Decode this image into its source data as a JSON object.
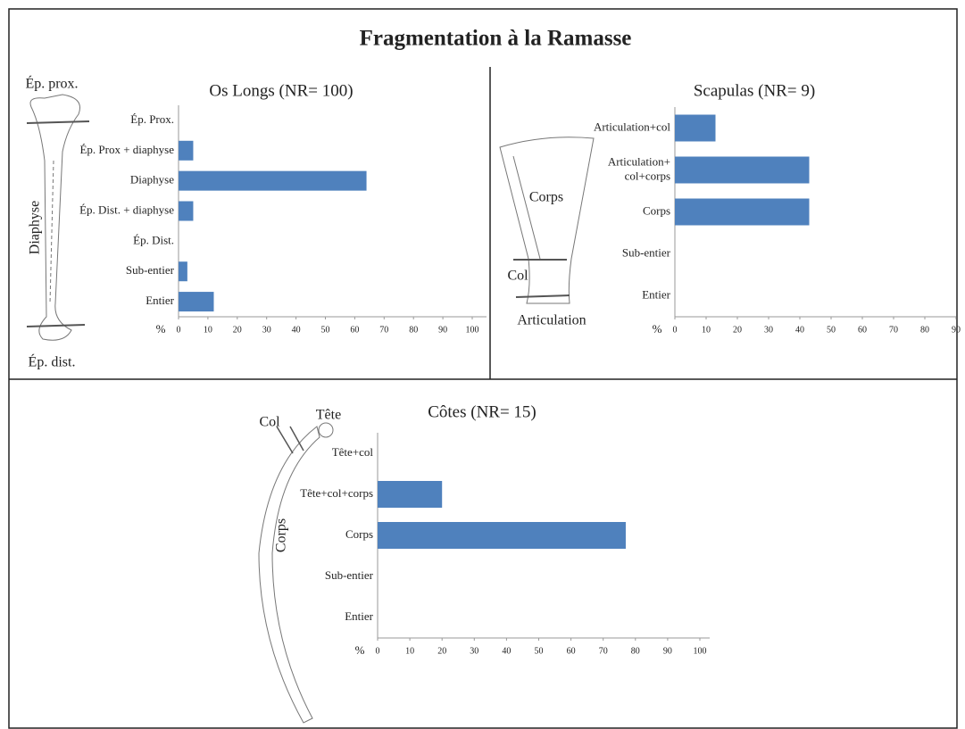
{
  "title": "Fragmentation à la Ramasse",
  "chart_data": [
    {
      "type": "bar",
      "orientation": "horizontal",
      "title": "Os Longs (NR= 100)",
      "xlabel": "%",
      "categories": [
        "Ép. Prox.",
        "Ép. Prox + diaphyse",
        "Diaphyse",
        "Ép. Dist. + diaphyse",
        "Ép. Dist.",
        "Sub-entier",
        "Entier"
      ],
      "values": [
        0,
        5,
        64,
        5,
        0,
        3,
        12
      ],
      "color": "#4f81bd",
      "xlim": [
        0,
        100
      ],
      "xticks": [
        0,
        10,
        20,
        30,
        40,
        50,
        60,
        70,
        80,
        90,
        100
      ],
      "annotations": [
        "Ép. prox.",
        "Diaphyse",
        "Ép. dist."
      ]
    },
    {
      "type": "bar",
      "orientation": "horizontal",
      "title": "Scapulas (NR= 9)",
      "xlabel": "%",
      "categories": [
        "Articulation+col",
        "Articulation+\ncol+corps",
        "Corps",
        "Sub-entier",
        "Entier"
      ],
      "values": [
        13,
        43,
        43,
        0,
        0
      ],
      "color": "#4f81bd",
      "xlim": [
        0,
        90
      ],
      "xticks": [
        0,
        10,
        20,
        30,
        40,
        50,
        60,
        70,
        80,
        90
      ],
      "annotations": [
        "Corps",
        "Col",
        "Articulation"
      ]
    },
    {
      "type": "bar",
      "orientation": "horizontal",
      "title": "Côtes (NR= 15)",
      "xlabel": "%",
      "categories": [
        "Tête+col",
        "Tête+col+corps",
        "Corps",
        "Sub-entier",
        "Entier"
      ],
      "values": [
        0,
        20,
        77,
        0,
        0
      ],
      "color": "#4f81bd",
      "xlim": [
        0,
        100
      ],
      "xticks": [
        0,
        10,
        20,
        30,
        40,
        50,
        60,
        70,
        80,
        90,
        100
      ],
      "annotations": [
        "Col",
        "Tête",
        "Corps"
      ]
    }
  ]
}
